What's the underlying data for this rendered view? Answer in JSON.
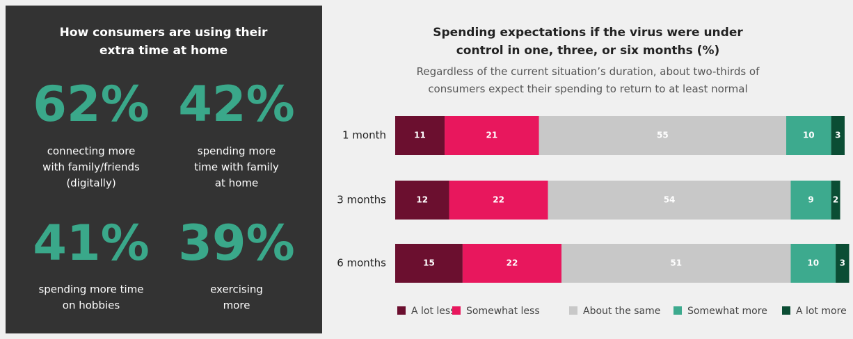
{
  "panel": {
    "title": "How consumers are using their extra time at home",
    "stats": [
      {
        "figure": "62%",
        "lines": [
          "connecting more",
          "with family/friends",
          "(digitally)"
        ]
      },
      {
        "figure": "42%",
        "lines": [
          "spending more",
          "time with family",
          "at home"
        ]
      },
      {
        "figure": "41%",
        "lines": [
          "spending more time",
          "on hobbies"
        ]
      },
      {
        "figure": "39%",
        "lines": [
          "exercising",
          "more"
        ]
      }
    ]
  },
  "chart_data": {
    "type": "stacked_bar_horizontal",
    "title": "Spending expectations if the virus were under control in one, three, or six months (%)",
    "subtitle": "Regardless of the current situation’s duration, about two-thirds of consumers expect their spending to return to at least normal",
    "categories": [
      "1 month",
      "3 months",
      "6 months"
    ],
    "xlim": [
      0,
      100
    ],
    "series": [
      {
        "name": "A lot less",
        "color": "#6b0f2f",
        "values": [
          11,
          12,
          15
        ]
      },
      {
        "name": "Somewhat less",
        "color": "#e8175d",
        "values": [
          21,
          22,
          22
        ]
      },
      {
        "name": "About the same",
        "color": "#c8c8c8",
        "values": [
          55,
          54,
          51
        ]
      },
      {
        "name": "Somewhat more",
        "color": "#3daa8e",
        "values": [
          10,
          9,
          10
        ]
      },
      {
        "name": "A lot more",
        "color": "#0b4d34",
        "values": [
          3,
          2,
          3
        ]
      }
    ],
    "legend": "bottom"
  }
}
